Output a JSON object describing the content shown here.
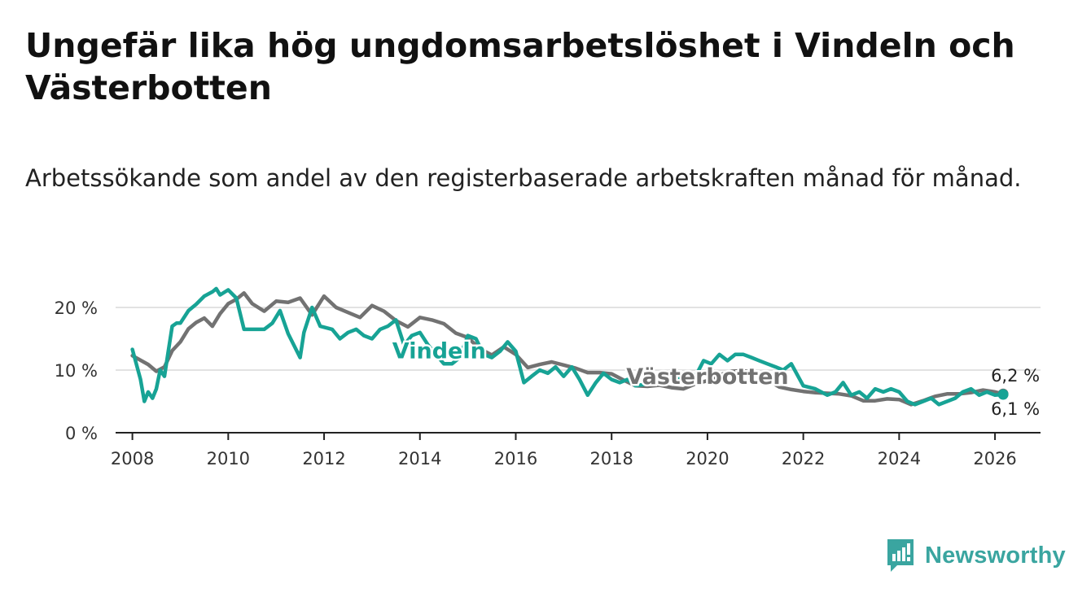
{
  "title": "Ungefär lika hög ungdomsarbetslöshet i Vindeln och Västerbotten",
  "subtitle": "Arbetssökande som andel av den registerbaserade arbetskraften månad för månad.",
  "brand": {
    "name": "Newsworthy",
    "icon": "newsworthy-logo-icon",
    "color": "#3aa5a0"
  },
  "chart_data": {
    "type": "line",
    "title": "Ungefär lika hög ungdomsarbetslöshet i Vindeln och Västerbotten",
    "subtitle": "Arbetssökande som andel av den registerbaserade arbetskraften månad för månad.",
    "xlabel": "",
    "ylabel": "",
    "xlim": [
      2007.65,
      2026.95
    ],
    "ylim": [
      0,
      20
    ],
    "x_ticks": [
      2008,
      2010,
      2012,
      2014,
      2016,
      2018,
      2020,
      2022,
      2024,
      2026
    ],
    "x_tick_labels": [
      "2008",
      "2010",
      "2012",
      "2014",
      "2016",
      "2018",
      "2020",
      "2022",
      "2024",
      "2026"
    ],
    "y_ticks": [
      0,
      10,
      20
    ],
    "y_tick_labels": [
      "0 %",
      "10 %",
      "20 %"
    ],
    "grid": "horizontal",
    "legend": "direct labels",
    "series": [
      {
        "name": "Västerbotten",
        "color": "#727272",
        "end_label": "6,2 %",
        "x": [
          2008.0,
          2008.33,
          2008.5,
          2008.67,
          2008.83,
          2009.0,
          2009.17,
          2009.33,
          2009.5,
          2009.67,
          2009.83,
          2010.0,
          2010.17,
          2010.33,
          2010.5,
          2010.75,
          2011.0,
          2011.25,
          2011.5,
          2011.75,
          2012.0,
          2012.25,
          2012.5,
          2012.75,
          2013.0,
          2013.25,
          2013.5,
          2013.75,
          2014.0,
          2014.25,
          2014.5,
          2014.75,
          2015.0,
          2015.25,
          2015.5,
          2015.75,
          2016.0,
          2016.25,
          2016.5,
          2016.75,
          2017.0,
          2017.25,
          2017.5,
          2017.75,
          2018.0,
          2018.25,
          2018.5,
          2018.75,
          2019.0,
          2019.25,
          2019.5,
          2019.75,
          2020.0,
          2020.25,
          2020.5,
          2020.75,
          2021.0,
          2021.25,
          2021.5,
          2021.75,
          2022.0,
          2022.25,
          2022.5,
          2022.75,
          2023.0,
          2023.25,
          2023.5,
          2023.75,
          2024.0,
          2024.25,
          2024.5,
          2024.75,
          2025.0,
          2025.25,
          2025.5,
          2025.75,
          2026.0,
          2026.17
        ],
        "y": [
          12.3,
          10.9,
          9.8,
          10.5,
          13.1,
          14.5,
          16.6,
          17.6,
          18.3,
          17.0,
          19.0,
          20.6,
          21.3,
          22.3,
          20.6,
          19.4,
          21.0,
          20.8,
          21.5,
          18.8,
          21.8,
          20.0,
          19.2,
          18.4,
          20.3,
          19.4,
          17.9,
          16.9,
          18.4,
          18.0,
          17.4,
          15.9,
          15.2,
          13.4,
          12.4,
          13.7,
          12.5,
          10.4,
          10.9,
          11.3,
          10.8,
          10.3,
          9.6,
          9.6,
          9.4,
          8.4,
          7.5,
          7.4,
          7.6,
          7.2,
          7.0,
          7.8,
          8.3,
          9.2,
          9.8,
          9.9,
          9.5,
          8.4,
          7.3,
          6.9,
          6.6,
          6.4,
          6.3,
          6.2,
          5.9,
          5.1,
          5.1,
          5.4,
          5.3,
          4.5,
          5.1,
          5.8,
          6.2,
          6.2,
          6.4,
          6.8,
          6.5,
          6.2
        ]
      },
      {
        "name": "Vindeln",
        "color": "#17a395",
        "end_label": "6,1 %",
        "x": [
          2008.0,
          2008.17,
          2008.25,
          2008.33,
          2008.42,
          2008.5,
          2008.58,
          2008.67,
          2008.75,
          2008.83,
          2008.92,
          2009.0,
          2009.17,
          2009.33,
          2009.5,
          2009.67,
          2009.75,
          2009.83,
          2010.0,
          2010.17,
          2010.33,
          2010.5,
          2010.75,
          2010.92,
          2011.08,
          2011.25,
          2011.5,
          2011.58,
          2011.75,
          2011.92,
          2012.17,
          2012.33,
          2012.5,
          2012.67,
          2012.83,
          2013.0,
          2013.17,
          2013.33,
          2013.5,
          2013.67,
          2013.83,
          2014.0,
          2014.17,
          2014.33,
          2014.5,
          2014.67,
          2014.83,
          2015.0,
          2015.17,
          2015.33,
          2015.5,
          2015.67,
          2015.83,
          2016.0,
          2016.17,
          2016.33,
          2016.5,
          2016.67,
          2016.83,
          2017.0,
          2017.17,
          2017.33,
          2017.5,
          2017.67,
          2017.83,
          2018.0,
          2018.17,
          2018.33,
          2018.5,
          2019.75,
          2019.92,
          2020.08,
          2020.25,
          2020.42,
          2020.58,
          2020.75,
          2020.92,
          2021.08,
          2021.25,
          2021.42,
          2021.58,
          2021.75,
          2022.0,
          2022.25,
          2022.5,
          2022.67,
          2022.83,
          2023.0,
          2023.17,
          2023.33,
          2023.5,
          2023.67,
          2023.83,
          2024.0,
          2024.17,
          2024.33,
          2024.5,
          2024.67,
          2024.83,
          2025.0,
          2025.17,
          2025.33,
          2025.5,
          2025.67,
          2025.83,
          2026.0,
          2026.17
        ],
        "y": [
          13.3,
          8.5,
          5.0,
          6.5,
          5.5,
          7.0,
          10.0,
          9.0,
          13.0,
          17.0,
          17.5,
          17.5,
          19.5,
          20.5,
          21.8,
          22.5,
          23.0,
          22.0,
          22.8,
          21.5,
          16.5,
          16.5,
          16.5,
          17.5,
          19.5,
          15.8,
          12.0,
          16.0,
          20.0,
          17.0,
          16.5,
          15.0,
          16.0,
          16.5,
          15.5,
          15.0,
          16.5,
          17.0,
          18.0,
          14.0,
          15.5,
          16.0,
          14.0,
          12.5,
          11.0,
          11.0,
          12.0,
          15.5,
          15.0,
          12.5,
          12.0,
          13.0,
          14.5,
          13.0,
          8.0,
          9.0,
          10.0,
          9.5,
          10.5,
          9.0,
          10.5,
          8.5,
          6.0,
          8.0,
          9.5,
          8.5,
          8.0,
          8.5,
          7.5,
          9.0,
          11.5,
          11.0,
          12.5,
          11.5,
          12.5,
          12.5,
          12.0,
          11.5,
          11.0,
          10.5,
          10.0,
          11.0,
          7.5,
          7.0,
          6.0,
          6.5,
          8.0,
          6.0,
          6.5,
          5.5,
          7.0,
          6.5,
          7.0,
          6.5,
          5.0,
          4.5,
          5.0,
          5.5,
          4.5,
          5.0,
          5.5,
          6.5,
          7.0,
          6.0,
          6.5,
          6.0,
          6.1
        ]
      }
    ],
    "annotations": [
      {
        "text": "Vindeln",
        "series": "Vindeln",
        "x": 2014.4,
        "y": 13.2
      },
      {
        "text": "Västerbotten",
        "series": "Västerbotten",
        "x": 2020.0,
        "y": 9.1
      }
    ]
  }
}
